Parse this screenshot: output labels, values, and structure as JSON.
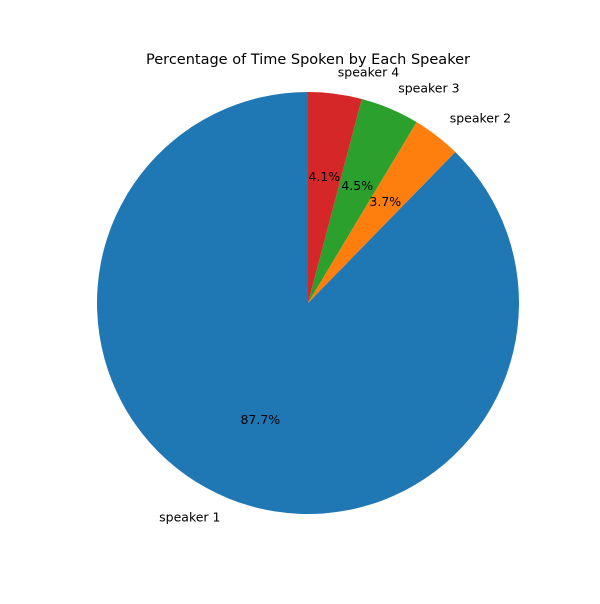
{
  "chart_data": {
    "type": "pie",
    "title": "Percentage of Time Spoken by Each Speaker",
    "start_angle_deg": 90,
    "direction": "counterclockwise",
    "slices": [
      {
        "label": "speaker 1",
        "value": 87.7,
        "pct_label": "87.7%",
        "color": "#1f77b4"
      },
      {
        "label": "speaker 2",
        "value": 3.7,
        "pct_label": "3.7%",
        "color": "#ff7f0e"
      },
      {
        "label": "speaker 3",
        "value": 4.5,
        "pct_label": "4.5%",
        "color": "#2ca02c"
      },
      {
        "label": "speaker 4",
        "value": 4.1,
        "pct_label": "4.1%",
        "color": "#d62728"
      }
    ]
  }
}
